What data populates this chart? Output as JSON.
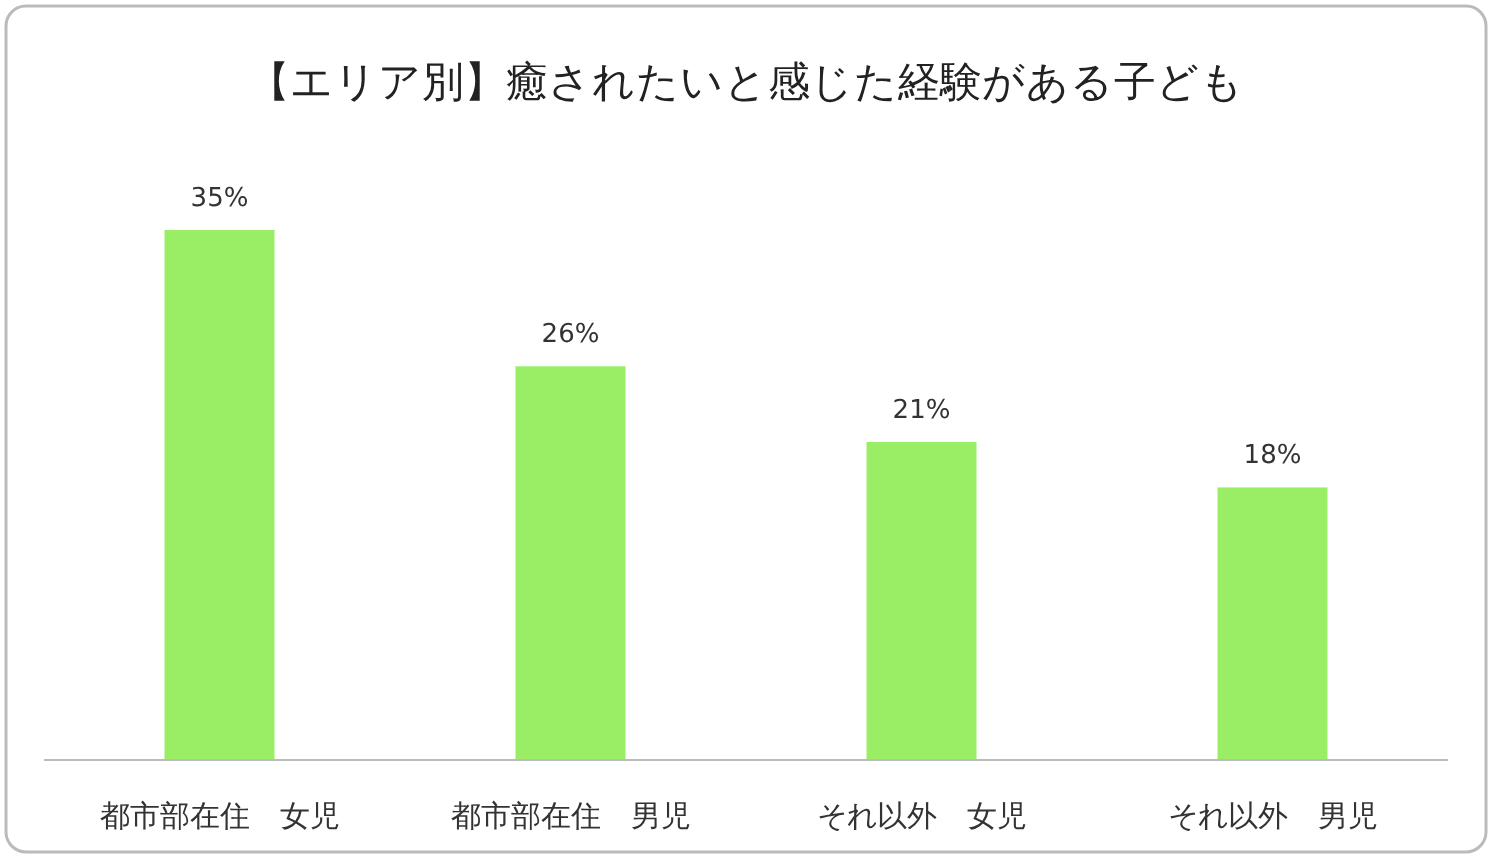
{
  "chart_data": {
    "type": "bar",
    "title": "【エリア別】癒されたいと感じた経験がある子ども",
    "categories": [
      "都市部在住　女児",
      "都市部在住　男児",
      "それ以外　女児",
      "それ以外　男児"
    ],
    "values": [
      35,
      26,
      21,
      18
    ],
    "value_labels": [
      "35%",
      "26%",
      "21%",
      "18%"
    ],
    "color": "#99ee66"
  }
}
